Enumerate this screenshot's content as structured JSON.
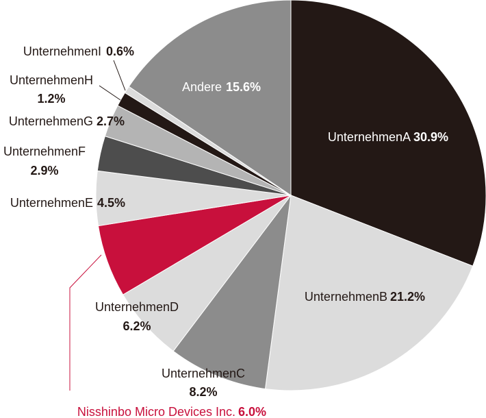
{
  "chart_data": {
    "type": "pie",
    "categories": [
      "UnternehmenA",
      "UnternehmenB",
      "UnternehmenC",
      "UnternehmenD",
      "Nisshinbo Micro Devices Inc.",
      "UnternehmenE",
      "UnternehmenF",
      "UnternehmenG",
      "UnternehmenH",
      "UnternehmenI",
      "Andere"
    ],
    "values": [
      30.9,
      21.2,
      8.2,
      6.2,
      6.0,
      4.5,
      2.9,
      2.7,
      1.2,
      0.6,
      15.6
    ],
    "value_labels": [
      "30.9%",
      "21.2%",
      "8.2%",
      "6.2%",
      "6.0%",
      "4.5%",
      "2.9%",
      "2.7%",
      "1.2%",
      "0.6%",
      "15.6%"
    ],
    "colors": [
      "#231815",
      "#dcdcdc",
      "#8c8c8c",
      "#dcdcdc",
      "#c8103c",
      "#dcdcdc",
      "#4d4d4d",
      "#b4b4b4",
      "#231815",
      "#dcdcdc",
      "#8c8c8c"
    ]
  }
}
